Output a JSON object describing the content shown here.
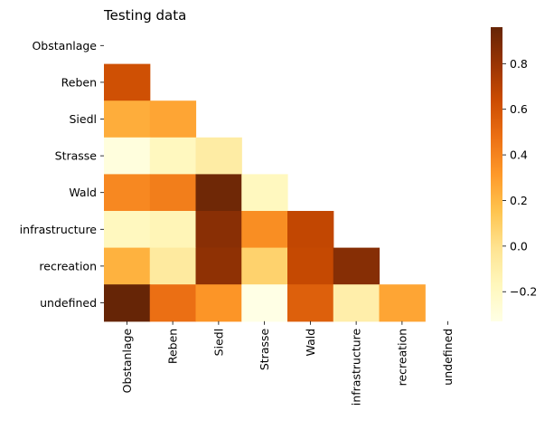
{
  "chart_data": {
    "type": "heatmap",
    "title": "Testing data",
    "labels": [
      "Obstanlage",
      "Reben",
      "Siedl",
      "Strasse",
      "Wald",
      "infrastructure",
      "recreation",
      "undefined"
    ],
    "mask": "upper-triangle-including-diagonal",
    "matrix": [
      [
        null,
        null,
        null,
        null,
        null,
        null,
        null,
        null
      ],
      [
        0.62,
        null,
        null,
        null,
        null,
        null,
        null,
        null
      ],
      [
        0.24,
        0.27,
        null,
        null,
        null,
        null,
        null,
        null
      ],
      [
        -0.3,
        -0.18,
        -0.08,
        null,
        null,
        null,
        null,
        null
      ],
      [
        0.38,
        0.42,
        0.93,
        -0.18,
        null,
        null,
        null,
        null
      ],
      [
        -0.18,
        -0.15,
        0.85,
        0.36,
        0.67,
        null,
        null,
        null
      ],
      [
        0.22,
        -0.06,
        0.83,
        0.08,
        0.66,
        0.86,
        null,
        null
      ],
      [
        0.96,
        0.48,
        0.33,
        -0.33,
        0.55,
        -0.1,
        0.27,
        null
      ]
    ],
    "colorbar": {
      "colormap": "YlOrBr",
      "vmin": -0.33,
      "vmax": 0.96,
      "ticks": [
        "0.8",
        "0.6",
        "0.4",
        "0.2",
        "0.0",
        "−0.2"
      ]
    }
  }
}
